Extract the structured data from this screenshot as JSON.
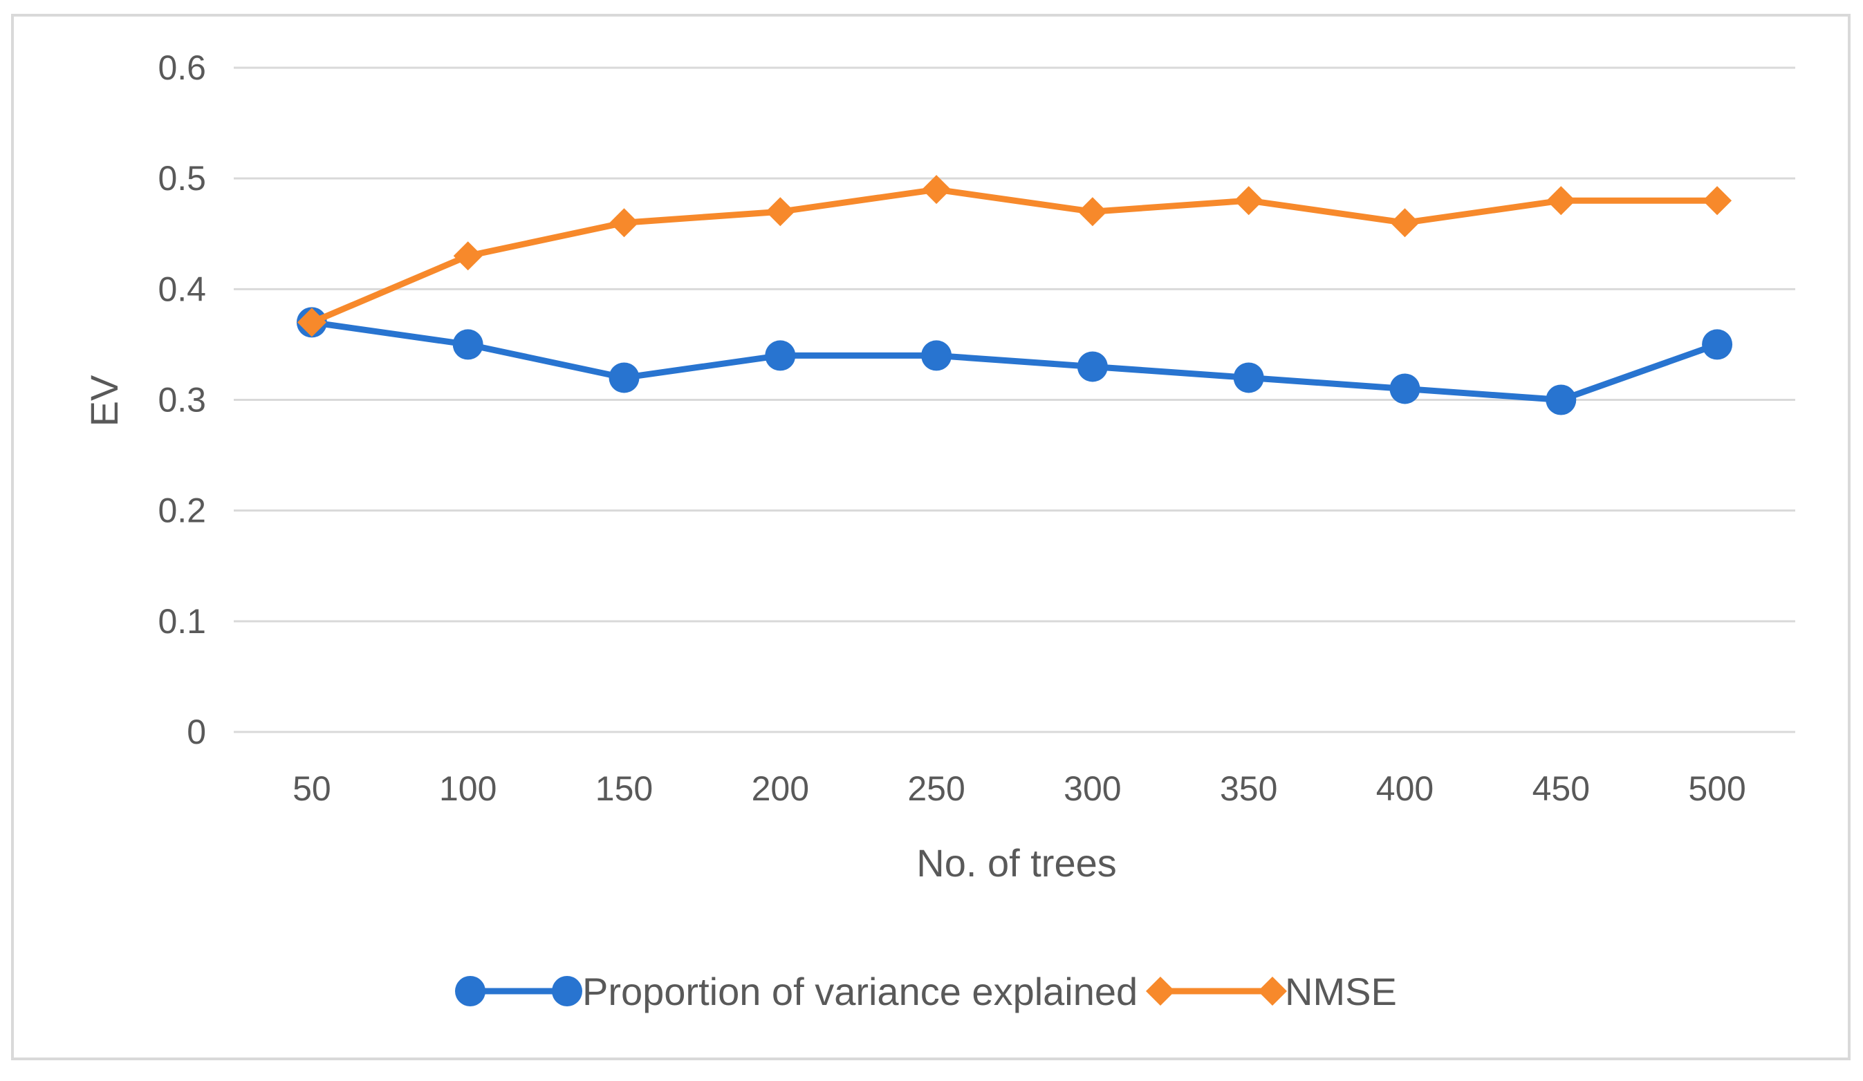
{
  "chart_data": {
    "type": "line",
    "title": "",
    "xlabel": "No. of trees",
    "ylabel": "EV",
    "categories": [
      "50",
      "100",
      "150",
      "200",
      "250",
      "300",
      "350",
      "400",
      "450",
      "500"
    ],
    "ylim": [
      0,
      0.6
    ],
    "yticks": [
      "0",
      "0.1",
      "0.2",
      "0.3",
      "0.4",
      "0.5",
      "0.6"
    ],
    "grid": true,
    "legend_position": "bottom",
    "series": [
      {
        "name": "Proportion of variance explained",
        "color": "#2874D0",
        "marker": "circle",
        "values": [
          0.37,
          0.35,
          0.32,
          0.34,
          0.34,
          0.33,
          0.32,
          0.31,
          0.3,
          0.35
        ]
      },
      {
        "name": "NMSE",
        "color": "#F7892B",
        "marker": "diamond",
        "values": [
          0.37,
          0.43,
          0.46,
          0.47,
          0.49,
          0.47,
          0.48,
          0.46,
          0.48,
          0.48
        ]
      }
    ]
  }
}
